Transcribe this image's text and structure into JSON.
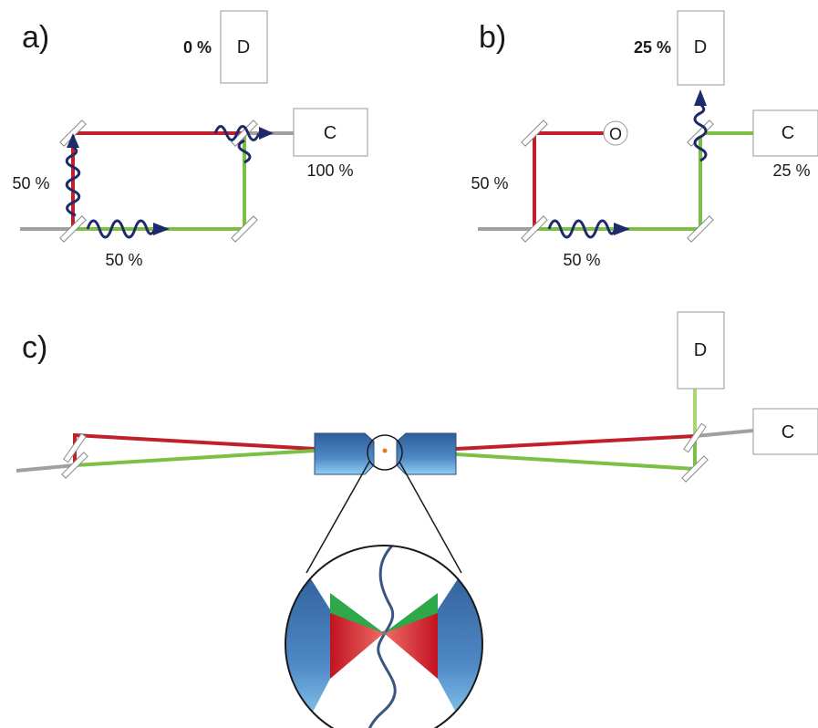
{
  "panel_a": {
    "label": "a)",
    "detector_d": "D",
    "detector_d_value": "0 %",
    "detector_c": "C",
    "detector_c_value": "100 %",
    "vertical_arm_value": "50 %",
    "horizontal_arm_value": "50 %"
  },
  "panel_b": {
    "label": "b)",
    "detector_d": "D",
    "detector_d_value": "25 %",
    "detector_c": "C",
    "detector_c_value": "25 %",
    "obstacle": "O",
    "vertical_arm_value": "50 %",
    "horizontal_arm_value": "50 %"
  },
  "panel_c": {
    "label": "c)",
    "detector_d": "D",
    "detector_c": "C"
  },
  "colors": {
    "red_path": "#c0202b",
    "green_path": "#7ac143",
    "input_beam": "#a0a0a0",
    "wave_packet": "#1f2a6b",
    "lens_blue": "#3a6fa8"
  }
}
